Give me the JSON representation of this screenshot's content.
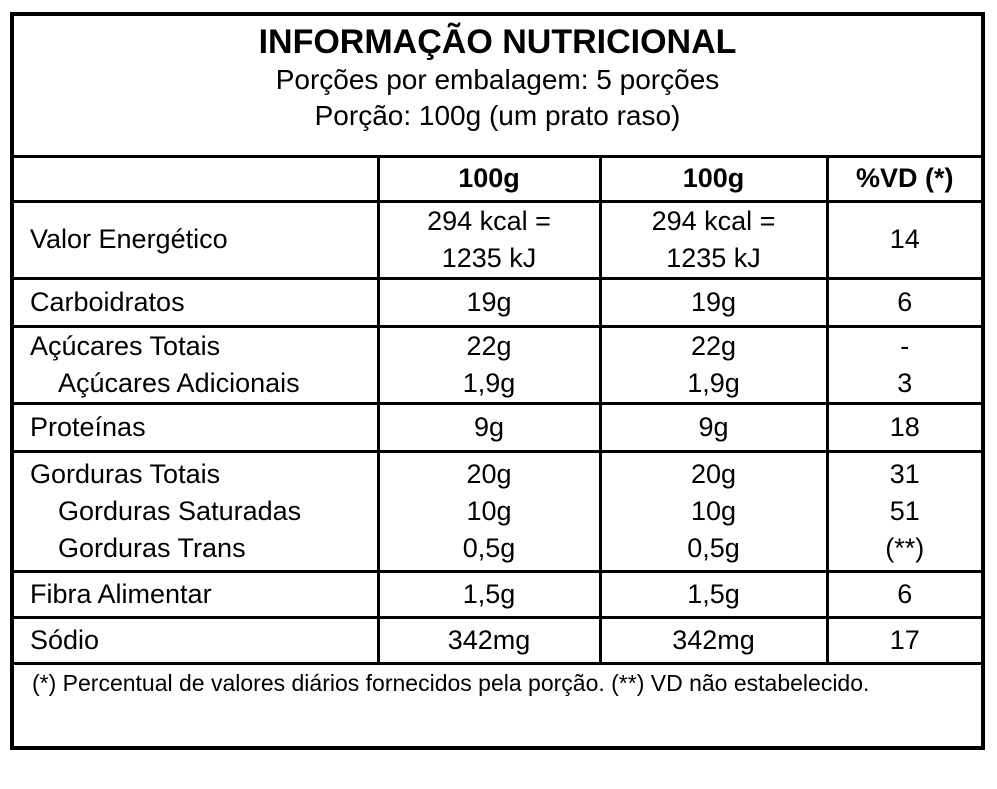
{
  "header": {
    "title": "INFORMAÇÃO NUTRICIONAL",
    "lines": [
      "Porções por embalagem: 5 porções",
      "Porção: 100g (um prato raso)"
    ]
  },
  "table": {
    "columns": [
      "100g",
      "100g",
      "%VD (*)"
    ],
    "rows": [
      {
        "lines": [
          [
            "Valor Energético",
            "294 kcal = 1235 kJ",
            "294 kcal = 1235 kJ",
            "14"
          ]
        ]
      },
      {
        "lines": [
          [
            "Carboidratos",
            "19g",
            "19g",
            "6"
          ]
        ]
      },
      {
        "lines": [
          [
            "Açúcares Totais",
            "22g",
            "22g",
            "-"
          ],
          [
            "Açúcares Adicionais",
            "1,9g",
            "1,9g",
            "3"
          ]
        ]
      },
      {
        "lines": [
          [
            "Proteínas",
            "9g",
            "9g",
            "18"
          ]
        ]
      },
      {
        "lines": [
          [
            "Gorduras Totais",
            "20g",
            "20g",
            "31"
          ],
          [
            "Gorduras Saturadas",
            "10g",
            "10g",
            "51"
          ],
          [
            "Gorduras Trans",
            "0,5g",
            "0,5g",
            "(**)"
          ]
        ]
      },
      {
        "lines": [
          [
            "Fibra Alimentar",
            "1,5g",
            "1,5g",
            "6"
          ]
        ]
      },
      {
        "lines": [
          [
            "Sódio",
            "342mg",
            "342mg",
            "17"
          ]
        ]
      }
    ]
  },
  "footer": "(*) Percentual de valores diários fornecidos pela porção. (**) VD não estabelecido."
}
